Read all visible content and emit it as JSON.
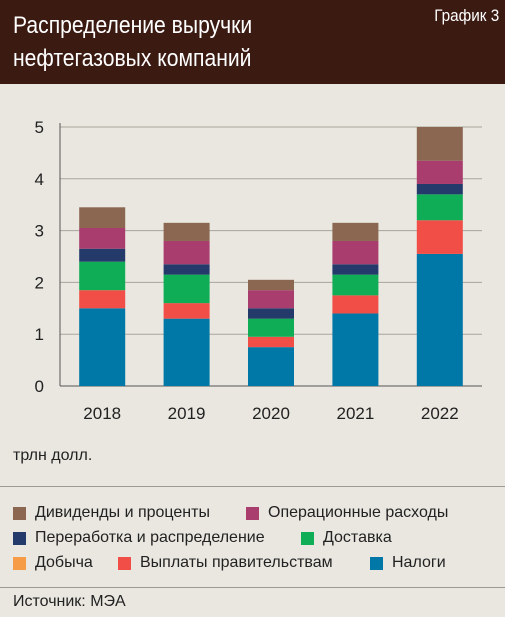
{
  "header": {
    "title_line1": "Распределение выручки",
    "title_line2": "нефтегазовых компаний",
    "chart_number": "График 3",
    "background": "#3b1a12"
  },
  "unit": "трлн долл.",
  "source": "Источник: МЭА",
  "legend": [
    {
      "label": "Дивиденды и проценты",
      "color": "#8b6752"
    },
    {
      "label": "Операционные расходы",
      "color": "#a83d6e"
    },
    {
      "label": "Переработка и распределение",
      "color": "#233a6b"
    },
    {
      "label": "Доставка",
      "color": "#0fad55"
    },
    {
      "label": "Добыча",
      "color": "#f79c46"
    },
    {
      "label": "Выплаты правительствам",
      "color": "#f04e46"
    },
    {
      "label": "Налоги",
      "color": "#0078a7"
    }
  ],
  "chart_data": {
    "type": "bar",
    "stacked": true,
    "categories": [
      "2018",
      "2019",
      "2020",
      "2021",
      "2022"
    ],
    "ylim": [
      0,
      5
    ],
    "yticks": [
      "0",
      "1",
      "2",
      "3",
      "4",
      "5"
    ],
    "series": [
      {
        "name": "Налоги",
        "color": "#0078a7",
        "values": [
          1.5,
          1.3,
          0.75,
          1.4,
          2.55
        ]
      },
      {
        "name": "Выплаты правительствам",
        "color": "#f04e46",
        "values": [
          0.35,
          0.3,
          0.2,
          0.35,
          0.65
        ]
      },
      {
        "name": "Добыча",
        "color": "#f79c46",
        "values": [
          0,
          0,
          0,
          0,
          0
        ]
      },
      {
        "name": "Доставка",
        "color": "#0fad55",
        "values": [
          0.55,
          0.55,
          0.35,
          0.4,
          0.5
        ]
      },
      {
        "name": "Переработка и распределение",
        "color": "#233a6b",
        "values": [
          0.25,
          0.2,
          0.2,
          0.2,
          0.2
        ]
      },
      {
        "name": "Операционные расходы",
        "color": "#a83d6e",
        "values": [
          0.4,
          0.45,
          0.35,
          0.45,
          0.45
        ]
      },
      {
        "name": "Дивиденды и проценты",
        "color": "#8b6752",
        "values": [
          0.4,
          0.35,
          0.2,
          0.35,
          0.65
        ]
      }
    ]
  }
}
